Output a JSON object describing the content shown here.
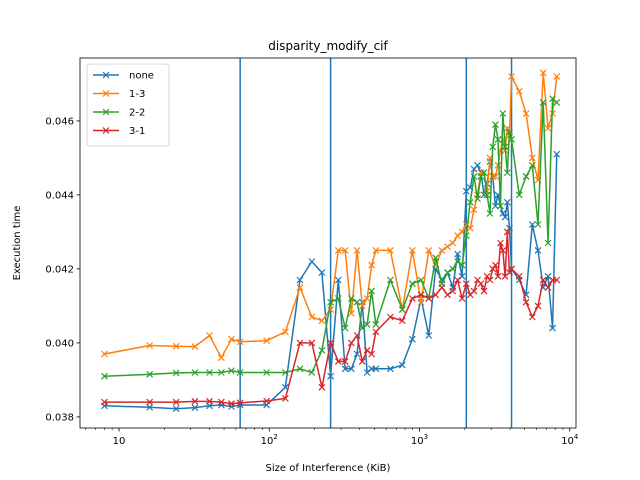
{
  "chart_data": {
    "type": "line",
    "title": "disparity_modify_cif",
    "xlabel": "Size of Interference (KiB)",
    "ylabel": "Execution time",
    "xscale": "log",
    "xlim": [
      5.5,
      11000
    ],
    "ylim": [
      0.0377,
      0.0477
    ],
    "x_ticks": [
      10,
      100,
      1000,
      10000
    ],
    "x_tick_labels": [
      "10",
      "2",
      "3",
      "4"
    ],
    "y_ticks": [
      0.038,
      0.04,
      0.042,
      0.044,
      0.046
    ],
    "y_tick_labels": [
      "0.038",
      "0.040",
      "0.042",
      "0.044",
      "0.046"
    ],
    "vlines": [
      64,
      256,
      2048,
      4096
    ],
    "vline_color": "#1f77b4",
    "legend_position": "upper left",
    "grid": false,
    "marker": "x",
    "series": [
      {
        "name": "none",
        "color": "#1f77b4",
        "points": [
          [
            8,
            0.0383
          ],
          [
            16,
            0.03826
          ],
          [
            24,
            0.03822
          ],
          [
            32,
            0.03825
          ],
          [
            40,
            0.0383
          ],
          [
            48,
            0.03832
          ],
          [
            56,
            0.03828
          ],
          [
            64,
            0.03832
          ],
          [
            96,
            0.03832
          ],
          [
            128,
            0.0388
          ],
          [
            160,
            0.0417
          ],
          [
            192,
            0.0422
          ],
          [
            224,
            0.0419
          ],
          [
            256,
            0.0391
          ],
          [
            288,
            0.0417
          ],
          [
            320,
            0.0393
          ],
          [
            352,
            0.0393
          ],
          [
            384,
            0.0397
          ],
          [
            416,
            0.0411
          ],
          [
            448,
            0.0392
          ],
          [
            480,
            0.0393
          ],
          [
            512,
            0.0393
          ],
          [
            640,
            0.0393
          ],
          [
            768,
            0.0394
          ],
          [
            896,
            0.0401
          ],
          [
            1024,
            0.0412
          ],
          [
            1152,
            0.0402
          ],
          [
            1280,
            0.042
          ],
          [
            1408,
            0.0417
          ],
          [
            1536,
            0.0419
          ],
          [
            1664,
            0.0415
          ],
          [
            1792,
            0.0424
          ],
          [
            1920,
            0.0418
          ],
          [
            2048,
            0.0441
          ],
          [
            2176,
            0.0442
          ],
          [
            2304,
            0.0447
          ],
          [
            2432,
            0.0448
          ],
          [
            2560,
            0.0446
          ],
          [
            2688,
            0.044
          ],
          [
            2816,
            0.0443
          ],
          [
            2944,
            0.0449
          ],
          [
            3072,
            0.0445
          ],
          [
            3200,
            0.0437
          ],
          [
            3328,
            0.044
          ],
          [
            3456,
            0.0437
          ],
          [
            3584,
            0.0435
          ],
          [
            3712,
            0.0434
          ],
          [
            3840,
            0.0438
          ],
          [
            3968,
            0.0431
          ],
          [
            4096,
            0.042
          ],
          [
            4608,
            0.0417
          ],
          [
            5120,
            0.0413
          ],
          [
            5632,
            0.0432
          ],
          [
            6144,
            0.0425
          ],
          [
            6656,
            0.0415
          ],
          [
            7168,
            0.0418
          ],
          [
            7680,
            0.0404
          ],
          [
            8192,
            0.0451
          ]
        ]
      },
      {
        "name": "1-3",
        "color": "#ff7f0e",
        "points": [
          [
            8,
            0.0397
          ],
          [
            16,
            0.03993
          ],
          [
            24,
            0.03991
          ],
          [
            32,
            0.0399
          ],
          [
            40,
            0.0402
          ],
          [
            48,
            0.0396
          ],
          [
            56,
            0.0401
          ],
          [
            64,
            0.04003
          ],
          [
            96,
            0.04006
          ],
          [
            128,
            0.0403
          ],
          [
            160,
            0.0415
          ],
          [
            192,
            0.0407
          ],
          [
            224,
            0.0406
          ],
          [
            256,
            0.0409
          ],
          [
            288,
            0.0425
          ],
          [
            320,
            0.0425
          ],
          [
            352,
            0.0408
          ],
          [
            384,
            0.0425
          ],
          [
            416,
            0.041
          ],
          [
            448,
            0.0412
          ],
          [
            480,
            0.0421
          ],
          [
            512,
            0.0425
          ],
          [
            640,
            0.0425
          ],
          [
            768,
            0.0409
          ],
          [
            896,
            0.0425
          ],
          [
            1024,
            0.0411
          ],
          [
            1152,
            0.0425
          ],
          [
            1280,
            0.0421
          ],
          [
            1408,
            0.0425
          ],
          [
            1536,
            0.0426
          ],
          [
            1664,
            0.0427
          ],
          [
            1792,
            0.0429
          ],
          [
            1920,
            0.043
          ],
          [
            2048,
            0.0432
          ],
          [
            2176,
            0.0431
          ],
          [
            2304,
            0.0436
          ],
          [
            2432,
            0.044
          ],
          [
            2560,
            0.0446
          ],
          [
            2688,
            0.0446
          ],
          [
            2816,
            0.0441
          ],
          [
            2944,
            0.045
          ],
          [
            3072,
            0.0445
          ],
          [
            3200,
            0.0445
          ],
          [
            3328,
            0.0448
          ],
          [
            3456,
            0.0452
          ],
          [
            3584,
            0.0455
          ],
          [
            3712,
            0.0452
          ],
          [
            3840,
            0.0458
          ],
          [
            3968,
            0.0456
          ],
          [
            4096,
            0.0472
          ],
          [
            4608,
            0.0468
          ],
          [
            5120,
            0.0462
          ],
          [
            5632,
            0.045
          ],
          [
            6144,
            0.0444
          ],
          [
            6656,
            0.0473
          ],
          [
            7168,
            0.0458
          ],
          [
            7680,
            0.0462
          ],
          [
            8192,
            0.0472
          ]
        ]
      },
      {
        "name": "2-2",
        "color": "#2ca02c",
        "points": [
          [
            8,
            0.0391
          ],
          [
            16,
            0.03915
          ],
          [
            24,
            0.03919
          ],
          [
            32,
            0.0392
          ],
          [
            40,
            0.0392
          ],
          [
            48,
            0.0392
          ],
          [
            56,
            0.03925
          ],
          [
            64,
            0.0392
          ],
          [
            96,
            0.0392
          ],
          [
            128,
            0.0392
          ],
          [
            160,
            0.0393
          ],
          [
            192,
            0.0392
          ],
          [
            224,
            0.0398
          ],
          [
            256,
            0.0411
          ],
          [
            288,
            0.0412
          ],
          [
            320,
            0.0404
          ],
          [
            352,
            0.0412
          ],
          [
            384,
            0.0411
          ],
          [
            416,
            0.0404
          ],
          [
            448,
            0.0405
          ],
          [
            480,
            0.0414
          ],
          [
            512,
            0.0405
          ],
          [
            640,
            0.0417
          ],
          [
            768,
            0.0409
          ],
          [
            896,
            0.0416
          ],
          [
            1024,
            0.0417
          ],
          [
            1152,
            0.0412
          ],
          [
            1280,
            0.0423
          ],
          [
            1408,
            0.0416
          ],
          [
            1536,
            0.0419
          ],
          [
            1664,
            0.042
          ],
          [
            1792,
            0.0422
          ],
          [
            1920,
            0.0421
          ],
          [
            2048,
            0.0429
          ],
          [
            2176,
            0.0438
          ],
          [
            2304,
            0.0445
          ],
          [
            2432,
            0.0439
          ],
          [
            2560,
            0.0445
          ],
          [
            2688,
            0.0446
          ],
          [
            2816,
            0.044
          ],
          [
            2944,
            0.0435
          ],
          [
            3072,
            0.0453
          ],
          [
            3200,
            0.0459
          ],
          [
            3328,
            0.0455
          ],
          [
            3456,
            0.0437
          ],
          [
            3584,
            0.0462
          ],
          [
            3712,
            0.0453
          ],
          [
            3840,
            0.0446
          ],
          [
            3968,
            0.0457
          ],
          [
            4096,
            0.0455
          ],
          [
            4608,
            0.044
          ],
          [
            5120,
            0.0445
          ],
          [
            5632,
            0.0448
          ],
          [
            6144,
            0.0432
          ],
          [
            6656,
            0.0465
          ],
          [
            7168,
            0.0427
          ],
          [
            7680,
            0.0466
          ],
          [
            8192,
            0.0465
          ]
        ]
      },
      {
        "name": "3-1",
        "color": "#d62728",
        "points": [
          [
            8,
            0.0384
          ],
          [
            16,
            0.0384
          ],
          [
            24,
            0.0384
          ],
          [
            32,
            0.03842
          ],
          [
            40,
            0.03842
          ],
          [
            48,
            0.0384
          ],
          [
            56,
            0.03836
          ],
          [
            64,
            0.03838
          ],
          [
            96,
            0.03843
          ],
          [
            128,
            0.0385
          ],
          [
            160,
            0.04
          ],
          [
            192,
            0.04
          ],
          [
            224,
            0.0388
          ],
          [
            256,
            0.04
          ],
          [
            288,
            0.0395
          ],
          [
            320,
            0.0395
          ],
          [
            352,
            0.04
          ],
          [
            384,
            0.0402
          ],
          [
            416,
            0.0395
          ],
          [
            448,
            0.0398
          ],
          [
            480,
            0.0397
          ],
          [
            512,
            0.0403
          ],
          [
            640,
            0.0407
          ],
          [
            768,
            0.0406
          ],
          [
            896,
            0.0412
          ],
          [
            1024,
            0.0413
          ],
          [
            1152,
            0.0412
          ],
          [
            1280,
            0.0413
          ],
          [
            1408,
            0.0415
          ],
          [
            1536,
            0.0413
          ],
          [
            1664,
            0.0414
          ],
          [
            1792,
            0.0417
          ],
          [
            1920,
            0.0412
          ],
          [
            2048,
            0.0416
          ],
          [
            2176,
            0.0413
          ],
          [
            2304,
            0.0414
          ],
          [
            2432,
            0.0417
          ],
          [
            2560,
            0.0416
          ],
          [
            2688,
            0.0414
          ],
          [
            2816,
            0.0418
          ],
          [
            2944,
            0.0417
          ],
          [
            3072,
            0.042
          ],
          [
            3200,
            0.0421
          ],
          [
            3328,
            0.0418
          ],
          [
            3456,
            0.0427
          ],
          [
            3584,
            0.0425
          ],
          [
            3712,
            0.0418
          ],
          [
            3840,
            0.043
          ],
          [
            3968,
            0.0419
          ],
          [
            4096,
            0.042
          ],
          [
            4608,
            0.0418
          ],
          [
            5120,
            0.0411
          ],
          [
            5632,
            0.0407
          ],
          [
            6144,
            0.041
          ],
          [
            6656,
            0.0417
          ],
          [
            7168,
            0.0415
          ],
          [
            7680,
            0.0417
          ],
          [
            8192,
            0.0417
          ]
        ]
      }
    ]
  }
}
